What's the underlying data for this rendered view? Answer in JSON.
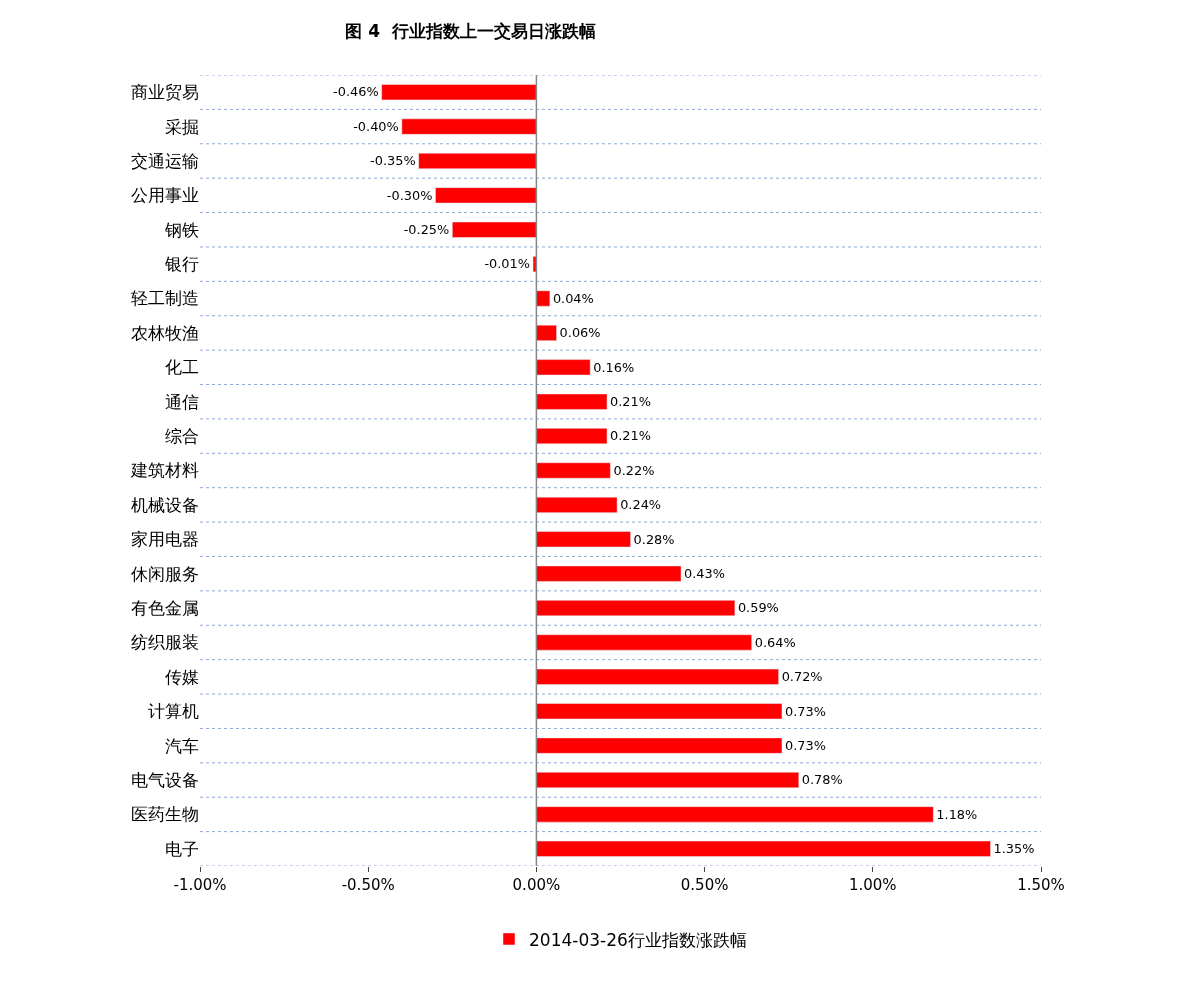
{
  "chart_data": {
    "type": "bar",
    "orientation": "horizontal",
    "title": "图 4  行业指数上一交易日涨跌幅",
    "categories": [
      "商业贸易",
      "采掘",
      "交通运输",
      "公用事业",
      "钢铁",
      "银行",
      "轻工制造",
      "农林牧渔",
      "化工",
      "通信",
      "综合",
      "建筑材料",
      "机械设备",
      "家用电器",
      "休闲服务",
      "有色金属",
      "纺织服装",
      "传媒",
      "计算机",
      "汽车",
      "电气设备",
      "医药生物",
      "电子"
    ],
    "series": [
      {
        "name": "2014-03-26行业指数涨跌幅",
        "color": "#ff0000",
        "values": [
          -0.46,
          -0.4,
          -0.35,
          -0.3,
          -0.25,
          -0.01,
          0.04,
          0.06,
          0.16,
          0.21,
          0.21,
          0.22,
          0.24,
          0.28,
          0.43,
          0.59,
          0.64,
          0.72,
          0.73,
          0.73,
          0.78,
          1.18,
          1.35
        ],
        "value_labels": [
          "-0.46%",
          "-0.40%",
          "-0.35%",
          "-0.30%",
          "-0.25%",
          "-0.01%",
          "0.04%",
          "0.06%",
          "0.16%",
          "0.21%",
          "0.21%",
          "0.22%",
          "0.24%",
          "0.28%",
          "0.43%",
          "0.59%",
          "0.64%",
          "0.72%",
          "0.73%",
          "0.73%",
          "0.78%",
          "1.18%",
          "1.35%"
        ]
      }
    ],
    "xlim": [
      -1.0,
      1.5
    ],
    "xticks": [
      {
        "value": -1.0,
        "label": "-1.00%"
      },
      {
        "value": -0.5,
        "label": "-0.50%"
      },
      {
        "value": 0,
        "label": "0.00%"
      },
      {
        "value": 0.5,
        "label": "0.50%"
      },
      {
        "value": 1.0,
        "label": "1.00%"
      },
      {
        "value": 1.5,
        "label": "1.50%"
      }
    ],
    "grid": "y",
    "legend": "bottom"
  }
}
